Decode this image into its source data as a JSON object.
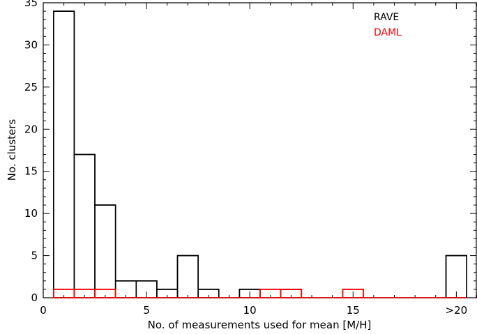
{
  "chart_data": {
    "type": "bar",
    "xlabel": "No. of measurements used for mean [M/H]",
    "ylabel": "No. clusters",
    "xlim": [
      0,
      21
    ],
    "ylim": [
      0,
      35
    ],
    "x_ticks": [
      {
        "value": 0,
        "label": "0"
      },
      {
        "value": 5,
        "label": "5"
      },
      {
        "value": 10,
        "label": "10"
      },
      {
        "value": 15,
        "label": "15"
      },
      {
        "value": 20,
        "label": ">20"
      }
    ],
    "y_ticks": [
      0,
      5,
      10,
      15,
      20,
      25,
      30,
      35
    ],
    "legend_position": "top-right",
    "series": [
      {
        "name": "RAVE",
        "color": "#000000",
        "x": [
          1,
          2,
          3,
          4,
          5,
          6,
          7,
          8,
          9,
          10,
          11,
          12,
          13,
          14,
          15,
          16,
          17,
          18,
          19,
          20
        ],
        "values": [
          34,
          17,
          11,
          2,
          2,
          1,
          5,
          1,
          0,
          1,
          0,
          1,
          0,
          0,
          0,
          0,
          0,
          0,
          0,
          5
        ]
      },
      {
        "name": "DAML",
        "color": "#ff0000",
        "x": [
          1,
          2,
          3,
          4,
          5,
          6,
          7,
          8,
          9,
          10,
          11,
          12,
          13,
          14,
          15,
          16,
          17,
          18,
          19,
          20
        ],
        "values": [
          1,
          1,
          1,
          0,
          0,
          0,
          0,
          0,
          0,
          0,
          1,
          1,
          0,
          0,
          1,
          0,
          0,
          0,
          0,
          0
        ]
      }
    ]
  }
}
